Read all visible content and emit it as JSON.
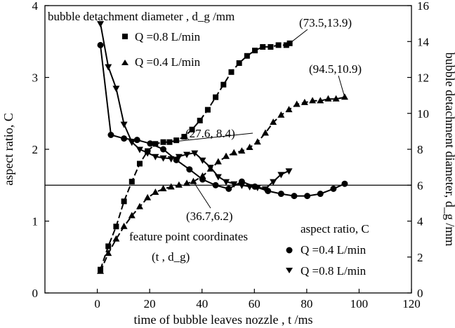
{
  "chart_data": {
    "type": "scatter",
    "xlabel": "time of  bubble leaves  nozzle , t /ms",
    "ylabel_left": "aspect ratio, C",
    "ylabel_right": "bubble detachment diameter, d_g /mm",
    "xlim": [
      -20,
      120
    ],
    "ylim_left": [
      0,
      4
    ],
    "ylim_right": [
      0,
      16
    ],
    "x_ticks": [
      0,
      20,
      40,
      60,
      80,
      100,
      120
    ],
    "y_left_ticks": [
      0,
      1,
      2,
      3,
      4
    ],
    "y_right_ticks": [
      0,
      2,
      4,
      6,
      8,
      10,
      12,
      14,
      16
    ],
    "grid": false,
    "reference_line": {
      "axis": "left",
      "value": 1.5
    },
    "legends": {
      "diameter_title": "bubble detachment diameter , d_g /mm",
      "aspect_title": "aspect ratio, C"
    },
    "series": [
      {
        "name": "Q =0.8 L/min",
        "group": "diameter",
        "axis": "right",
        "marker": "square",
        "line": "dashed",
        "x": [
          1.2,
          4.2,
          7.2,
          10.2,
          13.2,
          16.2,
          19.2,
          22.2,
          25.2,
          27.6,
          30.2,
          33.2,
          36.2,
          39.2,
          42.2,
          45.2,
          48.2,
          51.2,
          54.2,
          57.2,
          60.2,
          63.2,
          66.2,
          69.2,
          72.2,
          73.5
        ],
        "y": [
          1.3,
          2.6,
          3.7,
          5.1,
          6.2,
          7.2,
          7.9,
          8.3,
          8.4,
          8.4,
          8.5,
          8.7,
          9.1,
          9.6,
          10.2,
          10.9,
          11.6,
          12.3,
          12.8,
          13.2,
          13.5,
          13.7,
          13.7,
          13.8,
          13.8,
          13.9
        ]
      },
      {
        "name": "Q =0.4 L/min",
        "group": "diameter",
        "axis": "right",
        "marker": "triangle-up",
        "line": "dashed",
        "x": [
          1.2,
          4.2,
          7.2,
          10.2,
          13.2,
          16.2,
          19.2,
          22.2,
          25.2,
          28.2,
          31.2,
          34.2,
          36.7,
          40.2,
          43.2,
          46.2,
          49.2,
          52.2,
          55.2,
          58.2,
          61.2,
          64.2,
          67.2,
          70.2,
          73.2,
          76.2,
          79.2,
          82.2,
          85.2,
          88.2,
          91.2,
          94.5
        ],
        "y": [
          1.2,
          2.2,
          3.0,
          3.7,
          4.3,
          4.8,
          5.3,
          5.6,
          5.8,
          5.9,
          6.0,
          6.1,
          6.2,
          6.5,
          6.9,
          7.3,
          7.6,
          7.8,
          7.9,
          8.1,
          8.4,
          8.9,
          9.5,
          9.9,
          10.2,
          10.5,
          10.6,
          10.7,
          10.7,
          10.8,
          10.8,
          10.9
        ]
      },
      {
        "name": "Q =0.4 L/min",
        "group": "aspect",
        "axis": "left",
        "marker": "circle",
        "line": "solid",
        "x": [
          1.2,
          5.2,
          10.2,
          15.2,
          20.2,
          25.2,
          30.2,
          35.2,
          40.2,
          45.2,
          50.2,
          55.2,
          60.2,
          65.2,
          70.2,
          75.2,
          80.2,
          85.2,
          90.2,
          94.5
        ],
        "y": [
          3.45,
          2.2,
          2.15,
          2.13,
          2.08,
          2.0,
          1.85,
          1.72,
          1.58,
          1.5,
          1.45,
          1.55,
          1.48,
          1.42,
          1.38,
          1.35,
          1.35,
          1.38,
          1.45,
          1.52
        ]
      },
      {
        "name": "Q =0.8 L/min",
        "group": "aspect",
        "axis": "left",
        "marker": "triangle-down",
        "line": "solid",
        "x": [
          1.2,
          4.2,
          7.2,
          10.2,
          13.2,
          16.2,
          19.2,
          22.2,
          25.2,
          28.2,
          31.2,
          34.2,
          37.2,
          40.2,
          43.2,
          46.2,
          49.2,
          52.2,
          55.2,
          58.2,
          61.2,
          64.2,
          67.2,
          70.2,
          73.2
        ],
        "y": [
          3.75,
          3.15,
          2.85,
          2.35,
          2.1,
          2.0,
          1.95,
          1.9,
          1.88,
          1.87,
          1.9,
          1.93,
          1.95,
          1.85,
          1.75,
          1.62,
          1.55,
          1.52,
          1.5,
          1.48,
          1.47,
          1.45,
          1.55,
          1.65,
          1.7
        ]
      }
    ],
    "annotations": [
      {
        "text": "(73.5,13.9)",
        "x": 73.5,
        "y": 13.9,
        "axis": "right"
      },
      {
        "text": "(94.5,10.9)",
        "x": 94.5,
        "y": 10.9,
        "axis": "right"
      },
      {
        "text": "(27.6, 8.4)",
        "x": 27.6,
        "y": 8.4,
        "axis": "right"
      },
      {
        "text": "(36.7,6.2)",
        "x": 36.7,
        "y": 6.2,
        "axis": "right"
      },
      {
        "text": "feature point coordinates",
        "x": null,
        "y": null,
        "axis": "none"
      },
      {
        "text": "(t , d_g)",
        "x": null,
        "y": null,
        "axis": "none"
      }
    ]
  }
}
